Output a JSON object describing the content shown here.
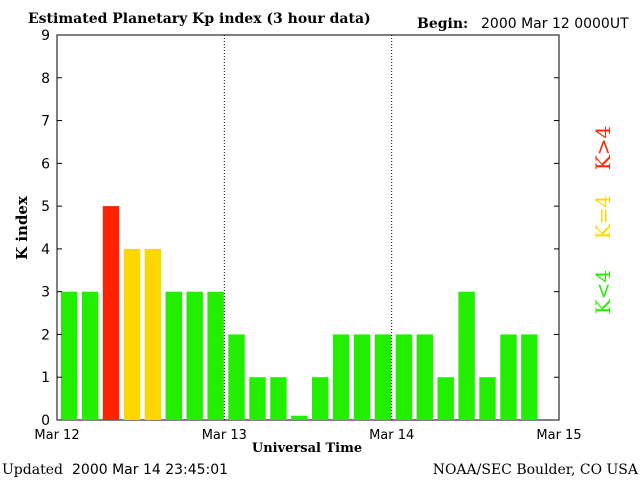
{
  "header": {
    "title": "Estimated Planetary Kp index (3 hour data)",
    "begin_label": "Begin:",
    "begin_value": "2000 Mar 12 0000UT"
  },
  "footer": {
    "updated_label": "Updated",
    "updated_value": "2000 Mar 14 23:45:01",
    "source": "NOAA/SEC Boulder, CO USA"
  },
  "legend": {
    "high": "K>4",
    "mid": "K=4",
    "low": "K<4"
  },
  "colors": {
    "low": "#22ee00",
    "mid": "#ffd700",
    "high": "#ff2200",
    "axis": "#000000",
    "background": "#ffffff"
  },
  "chart_data": {
    "type": "bar",
    "title": "Estimated Planetary Kp index (3 hour data)",
    "xlabel": "Universal Time",
    "ylabel": "K index",
    "ylim": [
      0,
      9
    ],
    "yticks": [
      "0",
      "1",
      "2",
      "3",
      "4",
      "5",
      "6",
      "7",
      "8",
      "9"
    ],
    "xticks": [
      "Mar 12",
      "Mar 13",
      "Mar 14",
      "Mar 15"
    ],
    "days_span": 3,
    "bars_per_day": 8,
    "values": [
      3,
      3,
      5,
      4,
      4,
      3,
      3,
      3,
      2,
      1,
      1,
      0.1,
      1,
      2,
      2,
      2,
      2,
      2,
      1,
      3,
      1,
      2,
      2
    ],
    "day_separators": "dotted",
    "grid": false
  }
}
